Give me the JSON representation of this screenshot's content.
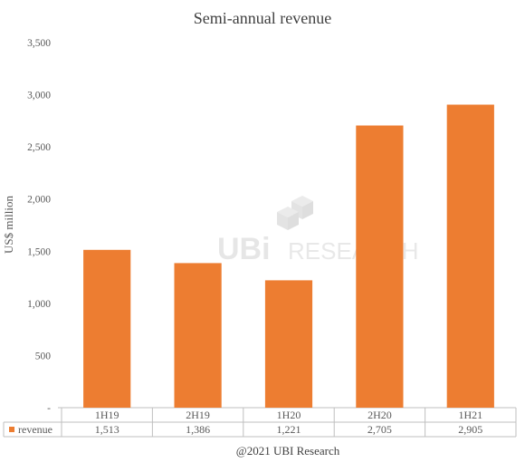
{
  "chart_data": {
    "type": "bar",
    "title": "Semi-annual revenue",
    "ylabel": "US$ million",
    "xlabel": "",
    "categories": [
      "1H19",
      "2H19",
      "1H20",
      "2H20",
      "1H21"
    ],
    "series": [
      {
        "name": "revenue",
        "values": [
          1513,
          1386,
          1221,
          2705,
          2905
        ],
        "value_labels": [
          "1,513",
          "1,386",
          "1,221",
          "2,705",
          "2,905"
        ]
      }
    ],
    "ylim": [
      0,
      3500
    ],
    "yticks": [
      0,
      500,
      1000,
      1500,
      2000,
      2500,
      3000,
      3500
    ],
    "ytick_labels": [
      "-",
      "500",
      "1,000",
      "1,500",
      "2,000",
      "2,500",
      "3,000",
      "3,500"
    ],
    "grid": false,
    "legend": "data-table-left",
    "bar_color": "#ED7D31"
  },
  "watermark": {
    "prefix": "UBi",
    "suffix": "RESEARCH"
  },
  "source": "@2021 UBI Research"
}
